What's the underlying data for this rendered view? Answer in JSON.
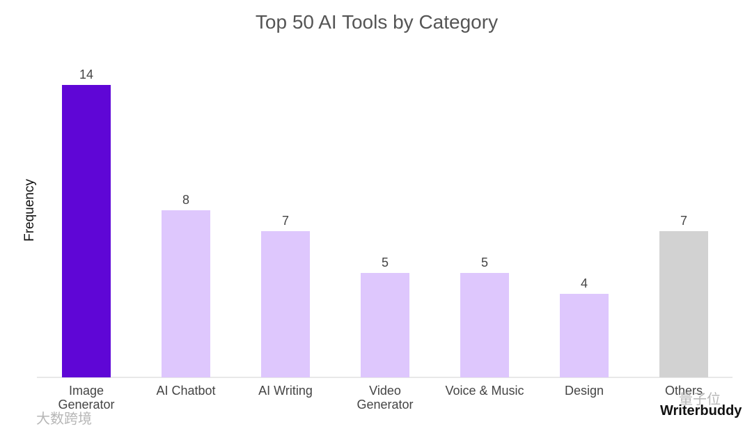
{
  "chart_data": {
    "type": "bar",
    "title": "Top 50 AI Tools by Category",
    "xlabel": "",
    "ylabel": "Frequency",
    "ylim": [
      0,
      14
    ],
    "grid": false,
    "legend": "none",
    "categories": [
      "Image\nGenerator",
      "AI Chatbot",
      "AI Writing",
      "Video\nGenerator",
      "Voice & Music",
      "Design",
      "Others"
    ],
    "values": [
      14,
      8,
      7,
      5,
      5,
      4,
      7
    ],
    "bar_colors": [
      "#5f06d6",
      "#dec7fd",
      "#dec7fd",
      "#dec7fd",
      "#dec7fd",
      "#dec7fd",
      "#d2d2d2"
    ],
    "data_labels": [
      "14",
      "8",
      "7",
      "5",
      "5",
      "4",
      "7"
    ]
  },
  "watermarks": {
    "left": "大数跨境",
    "right_brand": "Writerbuddy",
    "right_cn": "量子位"
  }
}
